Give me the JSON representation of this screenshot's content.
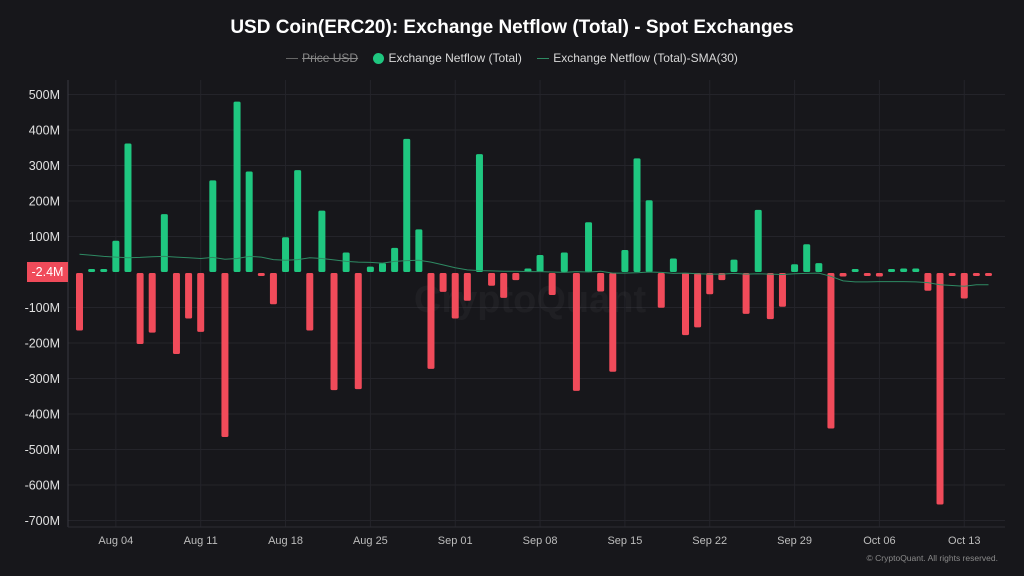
{
  "title": "USD Coin(ERC20): Exchange Netflow (Total) - Spot Exchanges",
  "legend": {
    "items": [
      {
        "label": "Price USD",
        "kind": "line",
        "color": "#666666",
        "hidden": true
      },
      {
        "label": "Exchange Netflow (Total)",
        "kind": "dot",
        "color": "#1fc780"
      },
      {
        "label": "Exchange Netflow (Total)-SMA(30)",
        "kind": "line",
        "color": "#2e8a63"
      }
    ]
  },
  "current_value_badge": "-2.4M",
  "watermark": "CryptoQuant",
  "copyright": "© CryptoQuant. All rights reserved.",
  "colors": {
    "positive": "#1fc780",
    "negative": "#f04b5a",
    "sma": "#2e8a63",
    "background": "#17171b",
    "grid": "#24242a"
  },
  "chart_data": {
    "type": "bar",
    "title": "USD Coin(ERC20): Exchange Netflow (Total) - Spot Exchanges",
    "xlabel": "",
    "ylabel": "",
    "ylim": [
      -700,
      500
    ],
    "y_unit": "M",
    "grid": true,
    "legend_position": "top",
    "y_ticks": [
      "500M",
      "400M",
      "300M",
      "200M",
      "100M",
      "-100M",
      "-200M",
      "-300M",
      "-400M",
      "-500M",
      "-600M",
      "-700M"
    ],
    "y_tick_values": [
      500,
      400,
      300,
      200,
      100,
      -100,
      -200,
      -300,
      -400,
      -500,
      -600,
      -700
    ],
    "x_ticks": [
      {
        "label": "Aug 04",
        "day_index": 3
      },
      {
        "label": "Aug 11",
        "day_index": 10
      },
      {
        "label": "Aug 18",
        "day_index": 17
      },
      {
        "label": "Aug 25",
        "day_index": 24
      },
      {
        "label": "Sep 01",
        "day_index": 31
      },
      {
        "label": "Sep 08",
        "day_index": 38
      },
      {
        "label": "Sep 15",
        "day_index": 45
      },
      {
        "label": "Sep 22",
        "day_index": 52
      },
      {
        "label": "Sep 29",
        "day_index": 59
      },
      {
        "label": "Oct 06",
        "day_index": 66
      },
      {
        "label": "Oct 13",
        "day_index": 73
      }
    ],
    "start_date": "Aug 01",
    "series": [
      {
        "name": "Exchange Netflow (Total)",
        "values": [
          -162,
          8,
          8,
          88,
          362,
          -200,
          -168,
          163,
          -228,
          -128,
          -166,
          258,
          -462,
          480,
          283,
          -8,
          -88,
          98,
          287,
          -162,
          173,
          -330,
          55,
          -327,
          15,
          25,
          68,
          375,
          120,
          -270,
          -53,
          -128,
          -78,
          332,
          -36,
          -70,
          -20,
          10,
          48,
          -62,
          55,
          -332,
          140,
          -52,
          -278,
          62,
          320,
          202,
          -98,
          38,
          -175,
          -153,
          -60,
          -20,
          35,
          -115,
          175,
          -130,
          -95,
          22,
          78,
          25,
          -438,
          -10,
          8,
          -5,
          -10,
          5,
          10,
          10,
          -50,
          -652,
          -5,
          -72,
          -5,
          -3
        ]
      },
      {
        "name": "Exchange Netflow (Total)-SMA(30)",
        "values": [
          50,
          47,
          44,
          42,
          40,
          41,
          43,
          44,
          42,
          40,
          38,
          41,
          36,
          38,
          44,
          42,
          35,
          33,
          35,
          40,
          38,
          34,
          30,
          28,
          27,
          25,
          30,
          32,
          33,
          28,
          20,
          12,
          6,
          4,
          3,
          2,
          2,
          1,
          1,
          0,
          -1,
          1,
          0,
          2,
          -3,
          -3,
          -2,
          0,
          -1,
          -4,
          -3,
          -5,
          -6,
          -6,
          -4,
          -6,
          -5,
          -6,
          -7,
          -5,
          -4,
          -3,
          -12,
          -25,
          -28,
          -28,
          -27,
          -27,
          -27,
          -28,
          -30,
          -36,
          -38,
          -40,
          -36,
          -36
        ]
      }
    ]
  }
}
